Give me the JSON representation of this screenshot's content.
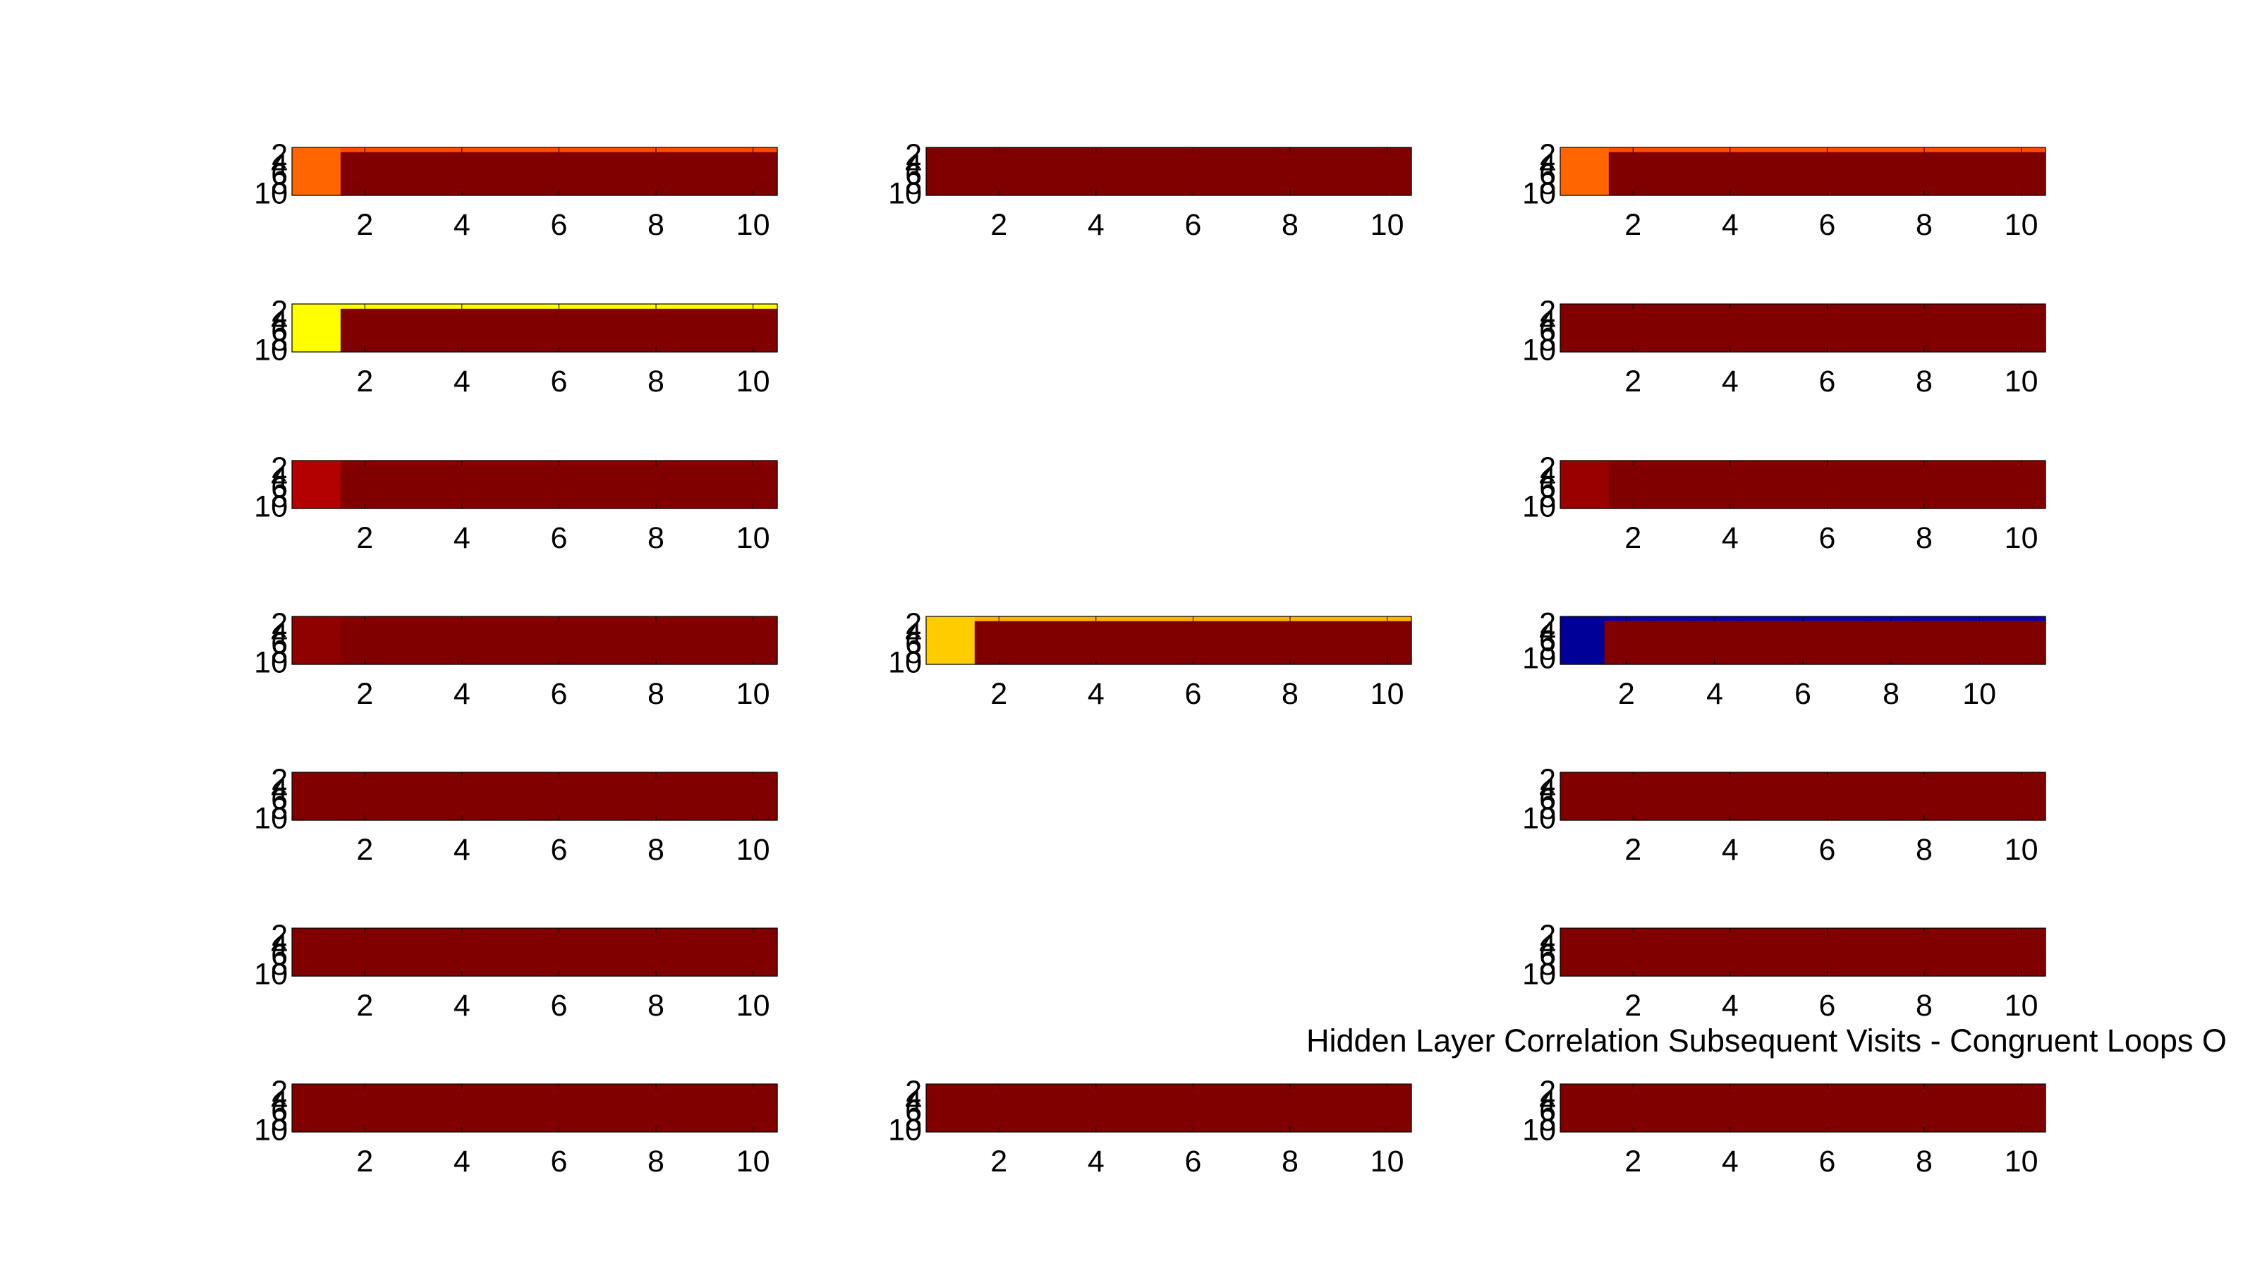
{
  "figure": {
    "title": "Hidden Layer Correlation Subsequent Visits - Congruent Loops O"
  },
  "chart_data": {
    "type": "heatmap",
    "layout": "7 rows x 3 columns grid of heatmap subplots (only some cells present)",
    "colormap": "jet",
    "clim": [
      -1,
      1
    ],
    "grid": false,
    "shared_x_ticks": [
      "2",
      "4",
      "6",
      "8",
      "10"
    ],
    "shared_y_ticks": [
      "2",
      "4",
      "6",
      "8",
      "10"
    ],
    "subplots": [
      {
        "row": 1,
        "col": 1,
        "matrix_size": [
          10,
          10
        ],
        "corner_value": 0.55,
        "first_row_value": 0.6,
        "background_value": 1.0
      },
      {
        "row": 1,
        "col": 2,
        "matrix_size": [
          10,
          10
        ],
        "corner_value": 1.0,
        "first_row_value": 1.0,
        "background_value": 1.0
      },
      {
        "row": 1,
        "col": 3,
        "matrix_size": [
          10,
          10
        ],
        "corner_value": 0.55,
        "first_row_value": 0.6,
        "background_value": 1.0
      },
      {
        "row": 2,
        "col": 1,
        "matrix_size": [
          10,
          10
        ],
        "corner_value": 0.25,
        "first_row_value": 0.25,
        "background_value": 1.0
      },
      {
        "row": 2,
        "col": 3,
        "matrix_size": [
          10,
          10
        ],
        "corner_value": 1.0,
        "first_row_value": 1.0,
        "background_value": 1.0
      },
      {
        "row": 3,
        "col": 1,
        "matrix_size": [
          10,
          10
        ],
        "corner_value": 0.9,
        "first_row_value": 0.98,
        "background_value": 1.0
      },
      {
        "row": 3,
        "col": 3,
        "matrix_size": [
          10,
          10
        ],
        "corner_value": 0.95,
        "first_row_value": 0.99,
        "background_value": 1.0
      },
      {
        "row": 4,
        "col": 1,
        "matrix_size": [
          10,
          10
        ],
        "corner_value": 0.97,
        "first_row_value": 0.99,
        "background_value": 1.0
      },
      {
        "row": 4,
        "col": 2,
        "matrix_size": [
          10,
          10
        ],
        "corner_value": 0.35,
        "first_row_value": 0.4,
        "background_value": 1.0
      },
      {
        "row": 4,
        "col": 3,
        "matrix_size": [
          11,
          11
        ],
        "corner_value": -0.95,
        "first_row_value": -0.9,
        "background_value": 1.0
      },
      {
        "row": 5,
        "col": 1,
        "matrix_size": [
          10,
          10
        ],
        "corner_value": 1.0,
        "first_row_value": 1.0,
        "background_value": 1.0
      },
      {
        "row": 5,
        "col": 3,
        "matrix_size": [
          10,
          10
        ],
        "corner_value": 1.0,
        "first_row_value": 1.0,
        "background_value": 1.0
      },
      {
        "row": 6,
        "col": 1,
        "matrix_size": [
          10,
          10
        ],
        "corner_value": 1.0,
        "first_row_value": 1.0,
        "background_value": 1.0
      },
      {
        "row": 6,
        "col": 3,
        "matrix_size": [
          10,
          10
        ],
        "corner_value": 1.0,
        "first_row_value": 1.0,
        "background_value": 1.0
      },
      {
        "row": 7,
        "col": 1,
        "matrix_size": [
          10,
          10
        ],
        "corner_value": 1.0,
        "first_row_value": 1.0,
        "background_value": 1.0
      },
      {
        "row": 7,
        "col": 2,
        "matrix_size": [
          10,
          10
        ],
        "corner_value": 1.0,
        "first_row_value": 1.0,
        "background_value": 1.0
      },
      {
        "row": 7,
        "col": 3,
        "matrix_size": [
          10,
          10
        ],
        "corner_value": 1.0,
        "first_row_value": 1.0,
        "background_value": 1.0
      }
    ]
  }
}
